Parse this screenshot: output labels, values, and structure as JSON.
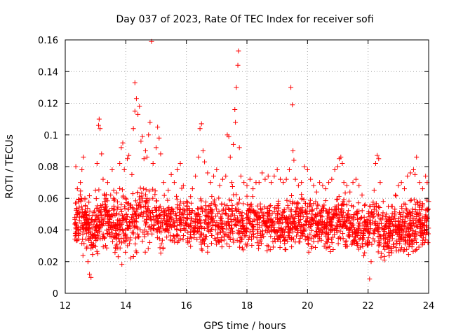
{
  "chart_data": {
    "type": "scatter",
    "title": "Day 037 of 2023, Rate Of TEC Index for receiver sofi",
    "xlabel": "GPS time / hours",
    "ylabel": "ROTI / TECUs",
    "xlim": [
      12,
      24
    ],
    "ylim": [
      0,
      0.16
    ],
    "xticks": [
      12,
      14,
      16,
      18,
      20,
      22,
      24
    ],
    "yticks": [
      0,
      0.02,
      0.04,
      0.06,
      0.08,
      0.1,
      0.12,
      0.14,
      0.16
    ],
    "xtick_labels": [
      "12",
      "14",
      "16",
      "18",
      "20",
      "22",
      "24"
    ],
    "ytick_labels": [
      "0",
      "0.02",
      "0.04",
      "0.06",
      "0.08",
      "0.1",
      "0.12",
      "0.14",
      "0.16"
    ],
    "grid": true,
    "marker": "plus",
    "color": "#ff0000",
    "series": [
      {
        "name": "ROTI",
        "points": [
          [
            12.35,
            0.08
          ],
          [
            12.4,
            0.066
          ],
          [
            12.45,
            0.052
          ],
          [
            12.5,
            0.07
          ],
          [
            12.55,
            0.078
          ],
          [
            12.6,
            0.086
          ],
          [
            12.65,
            0.06
          ],
          [
            12.7,
            0.045
          ],
          [
            12.75,
            0.02
          ],
          [
            12.8,
            0.012
          ],
          [
            12.85,
            0.01
          ],
          [
            12.9,
            0.03
          ],
          [
            13.0,
            0.065
          ],
          [
            13.05,
            0.082
          ],
          [
            13.1,
            0.106
          ],
          [
            13.12,
            0.11
          ],
          [
            13.15,
            0.104
          ],
          [
            13.2,
            0.088
          ],
          [
            13.25,
            0.072
          ],
          [
            13.3,
            0.058
          ],
          [
            13.4,
            0.07
          ],
          [
            13.5,
            0.062
          ],
          [
            13.55,
            0.078
          ],
          [
            13.6,
            0.065
          ],
          [
            13.7,
            0.05
          ],
          [
            13.8,
            0.082
          ],
          [
            13.85,
            0.092
          ],
          [
            13.9,
            0.095
          ],
          [
            13.95,
            0.078
          ],
          [
            14.0,
            0.06
          ],
          [
            14.05,
            0.085
          ],
          [
            14.1,
            0.087
          ],
          [
            14.2,
            0.075
          ],
          [
            14.25,
            0.104
          ],
          [
            14.3,
            0.115
          ],
          [
            14.3,
            0.133
          ],
          [
            14.35,
            0.123
          ],
          [
            14.4,
            0.113
          ],
          [
            14.45,
            0.118
          ],
          [
            14.5,
            0.096
          ],
          [
            14.55,
            0.099
          ],
          [
            14.6,
            0.085
          ],
          [
            14.65,
            0.09
          ],
          [
            14.7,
            0.086
          ],
          [
            14.75,
            0.1
          ],
          [
            14.8,
            0.108
          ],
          [
            14.85,
            0.159
          ],
          [
            14.9,
            0.082
          ],
          [
            15.0,
            0.092
          ],
          [
            15.05,
            0.105
          ],
          [
            15.1,
            0.098
          ],
          [
            15.15,
            0.088
          ],
          [
            15.25,
            0.07
          ],
          [
            15.4,
            0.065
          ],
          [
            15.5,
            0.075
          ],
          [
            15.6,
            0.07
          ],
          [
            15.7,
            0.078
          ],
          [
            15.8,
            0.082
          ],
          [
            15.9,
            0.068
          ],
          [
            16.0,
            0.058
          ],
          [
            16.2,
            0.066
          ],
          [
            16.3,
            0.074
          ],
          [
            16.4,
            0.086
          ],
          [
            16.45,
            0.104
          ],
          [
            16.5,
            0.107
          ],
          [
            16.55,
            0.09
          ],
          [
            16.6,
            0.083
          ],
          [
            16.7,
            0.076
          ],
          [
            16.8,
            0.07
          ],
          [
            16.9,
            0.074
          ],
          [
            17.0,
            0.078
          ],
          [
            17.1,
            0.068
          ],
          [
            17.2,
            0.072
          ],
          [
            17.3,
            0.074
          ],
          [
            17.35,
            0.1
          ],
          [
            17.4,
            0.099
          ],
          [
            17.45,
            0.086
          ],
          [
            17.5,
            0.07
          ],
          [
            17.55,
            0.094
          ],
          [
            17.6,
            0.116
          ],
          [
            17.62,
            0.108
          ],
          [
            17.65,
            0.13
          ],
          [
            17.7,
            0.144
          ],
          [
            17.72,
            0.153
          ],
          [
            17.75,
            0.092
          ],
          [
            17.8,
            0.074
          ],
          [
            17.9,
            0.07
          ],
          [
            18.0,
            0.068
          ],
          [
            18.1,
            0.072
          ],
          [
            18.2,
            0.066
          ],
          [
            18.3,
            0.07
          ],
          [
            18.4,
            0.07
          ],
          [
            18.5,
            0.076
          ],
          [
            18.6,
            0.072
          ],
          [
            18.7,
            0.074
          ],
          [
            18.8,
            0.07
          ],
          [
            18.9,
            0.074
          ],
          [
            19.0,
            0.078
          ],
          [
            19.1,
            0.072
          ],
          [
            19.2,
            0.07
          ],
          [
            19.3,
            0.072
          ],
          [
            19.4,
            0.078
          ],
          [
            19.45,
            0.13
          ],
          [
            19.5,
            0.119
          ],
          [
            19.52,
            0.09
          ],
          [
            19.55,
            0.084
          ],
          [
            19.6,
            0.072
          ],
          [
            19.7,
            0.068
          ],
          [
            19.8,
            0.07
          ],
          [
            19.9,
            0.08
          ],
          [
            20.0,
            0.078
          ],
          [
            20.1,
            0.072
          ],
          [
            20.2,
            0.068
          ],
          [
            20.3,
            0.064
          ],
          [
            20.4,
            0.07
          ],
          [
            20.5,
            0.068
          ],
          [
            20.6,
            0.066
          ],
          [
            20.7,
            0.07
          ],
          [
            20.8,
            0.072
          ],
          [
            20.9,
            0.078
          ],
          [
            21.0,
            0.08
          ],
          [
            21.05,
            0.085
          ],
          [
            21.1,
            0.086
          ],
          [
            21.15,
            0.082
          ],
          [
            21.2,
            0.07
          ],
          [
            21.3,
            0.068
          ],
          [
            21.4,
            0.064
          ],
          [
            21.5,
            0.07
          ],
          [
            21.6,
            0.072
          ],
          [
            21.7,
            0.068
          ],
          [
            21.8,
            0.062
          ],
          [
            21.9,
            0.056
          ],
          [
            22.0,
            0.042
          ],
          [
            22.05,
            0.009
          ],
          [
            22.1,
            0.02
          ],
          [
            22.2,
            0.065
          ],
          [
            22.25,
            0.082
          ],
          [
            22.3,
            0.087
          ],
          [
            22.35,
            0.085
          ],
          [
            22.4,
            0.07
          ],
          [
            22.5,
            0.058
          ],
          [
            22.6,
            0.05
          ],
          [
            22.7,
            0.048
          ],
          [
            22.8,
            0.055
          ],
          [
            22.9,
            0.062
          ],
          [
            23.0,
            0.068
          ],
          [
            23.1,
            0.07
          ],
          [
            23.2,
            0.066
          ],
          [
            23.3,
            0.074
          ],
          [
            23.4,
            0.076
          ],
          [
            23.5,
            0.078
          ],
          [
            23.55,
            0.075
          ],
          [
            23.6,
            0.086
          ],
          [
            23.7,
            0.07
          ],
          [
            23.8,
            0.066
          ],
          [
            23.9,
            0.074
          ],
          [
            23.95,
            0.07
          ],
          [
            24.0,
            0.058
          ]
        ]
      }
    ],
    "band": {
      "x": [
        12.3,
        12.6,
        12.9,
        13.2,
        13.5,
        13.8,
        14.1,
        14.4,
        14.7,
        15.0,
        15.3,
        15.6,
        15.9,
        16.2,
        16.5,
        16.8,
        17.1,
        17.4,
        17.7,
        18.0,
        18.3,
        18.6,
        18.9,
        19.2,
        19.5,
        19.8,
        20.1,
        20.4,
        20.7,
        21.0,
        21.3,
        21.6,
        21.9,
        22.2,
        22.5,
        22.8,
        23.1,
        23.4,
        23.7,
        24.0
      ],
      "low": [
        0.026,
        0.02,
        0.016,
        0.02,
        0.02,
        0.016,
        0.018,
        0.018,
        0.022,
        0.024,
        0.024,
        0.026,
        0.026,
        0.022,
        0.02,
        0.022,
        0.02,
        0.02,
        0.02,
        0.022,
        0.024,
        0.022,
        0.024,
        0.022,
        0.022,
        0.022,
        0.02,
        0.022,
        0.022,
        0.024,
        0.022,
        0.018,
        0.016,
        0.024,
        0.016,
        0.016,
        0.018,
        0.018,
        0.02,
        0.022
      ],
      "high": [
        0.065,
        0.07,
        0.06,
        0.074,
        0.065,
        0.07,
        0.072,
        0.078,
        0.075,
        0.07,
        0.064,
        0.066,
        0.07,
        0.062,
        0.068,
        0.066,
        0.068,
        0.07,
        0.068,
        0.064,
        0.066,
        0.066,
        0.064,
        0.066,
        0.066,
        0.068,
        0.068,
        0.066,
        0.064,
        0.07,
        0.066,
        0.064,
        0.062,
        0.066,
        0.06,
        0.062,
        0.066,
        0.064,
        0.064,
        0.066
      ]
    }
  }
}
